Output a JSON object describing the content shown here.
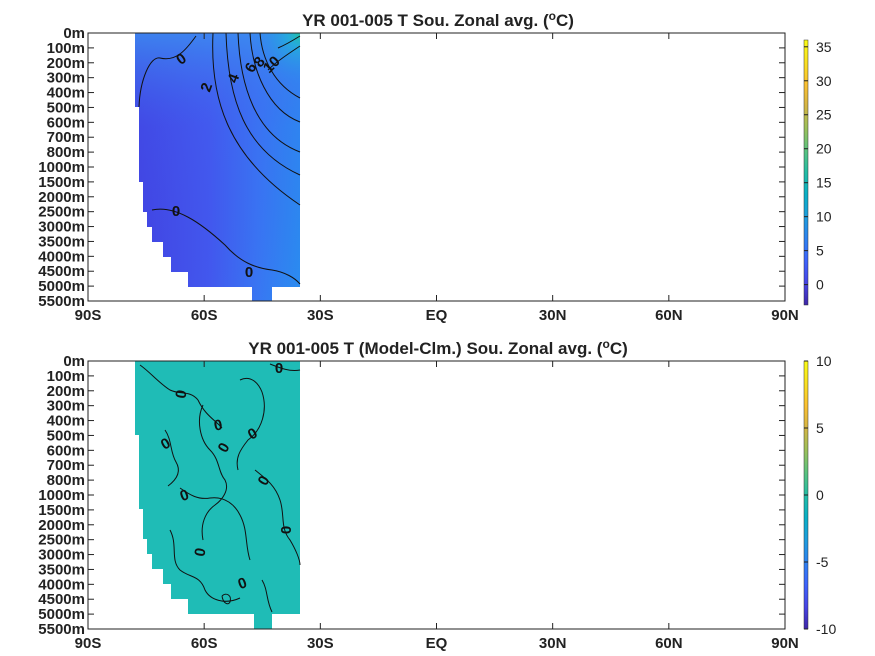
{
  "chart_data": [
    {
      "type": "heatmap",
      "title_main": "YR 001-005 T Sou. Zonal avg. (",
      "title_unit_sup": "o",
      "title_unit_tail": "C)",
      "y_ticks": [
        "0m",
        "100m",
        "200m",
        "300m",
        "400m",
        "500m",
        "600m",
        "700m",
        "800m",
        "1000m",
        "1500m",
        "2000m",
        "2500m",
        "3000m",
        "3500m",
        "4000m",
        "4500m",
        "5000m",
        "5500m"
      ],
      "x_ticks": [
        "90S",
        "60S",
        "30S",
        "EQ",
        "30N",
        "60N",
        "90N"
      ],
      "xlim": [
        -90,
        90
      ],
      "colorbar": {
        "min": -3,
        "max": 36,
        "ticks": [
          0,
          5,
          10,
          15,
          20,
          25,
          30,
          35
        ]
      },
      "contour_labels": [
        "0",
        "2",
        "4",
        "6",
        "8",
        "10",
        "0",
        "0"
      ],
      "data_extent_lat": [
        -78,
        -35
      ],
      "field": "temperature, warmer toward north and surface"
    },
    {
      "type": "heatmap",
      "title_main": "YR 001-005 T (Model-Clm.) Sou. Zonal avg. (",
      "title_unit_sup": "o",
      "title_unit_tail": "C)",
      "y_ticks": [
        "0m",
        "100m",
        "200m",
        "300m",
        "400m",
        "500m",
        "600m",
        "700m",
        "800m",
        "1000m",
        "1500m",
        "2000m",
        "2500m",
        "3000m",
        "3500m",
        "4000m",
        "4500m",
        "5000m",
        "5500m"
      ],
      "x_ticks": [
        "90S",
        "60S",
        "30S",
        "EQ",
        "30N",
        "60N",
        "90N"
      ],
      "xlim": [
        -90,
        90
      ],
      "colorbar": {
        "min": -10,
        "max": 10,
        "ticks": [
          10,
          5,
          0,
          -5,
          -10
        ]
      },
      "contour_labels": [
        "0",
        "0",
        "0",
        "0",
        "0",
        "0",
        "0",
        "0",
        "0",
        "0",
        "0"
      ],
      "data_extent_lat": [
        -78,
        -35
      ],
      "field": "difference near zero"
    }
  ],
  "colors": {
    "parula": [
      "#3e26a8",
      "#4744e6",
      "#3d63fd",
      "#2d82f1",
      "#1d9ddd",
      "#09b0c6",
      "#23bda5",
      "#59c37f",
      "#9bc05a",
      "#d4b544",
      "#fbc031",
      "#f9e021",
      "#f9fb15"
    ],
    "diff_fill": "#1fbcb6"
  }
}
